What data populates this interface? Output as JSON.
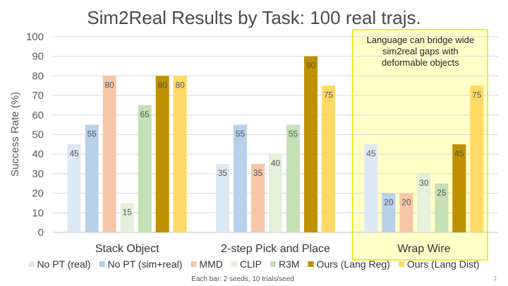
{
  "chart_data": {
    "type": "bar",
    "title": "Sim2Real Results by Task: 100 real trajs.",
    "ylabel": "Success Rate (%)",
    "xlabel": "",
    "ylim": [
      0,
      100
    ],
    "yticks": [
      0,
      10,
      20,
      30,
      40,
      50,
      60,
      70,
      80,
      90,
      100
    ],
    "grid": true,
    "legend_position": "bottom",
    "categories": [
      "Stack Object",
      "2-step Pick and Place",
      "Wrap Wire"
    ],
    "series": [
      {
        "name": "No PT (real)",
        "color": "#dde8f5",
        "values": [
          45,
          35,
          45
        ]
      },
      {
        "name": "No PT (sim+real)",
        "color": "#b8d0ea",
        "values": [
          55,
          55,
          20
        ]
      },
      {
        "name": "MMD",
        "color": "#f6c6a8",
        "values": [
          80,
          35,
          20
        ]
      },
      {
        "name": "CLIP",
        "color": "#e3f0da",
        "values": [
          15,
          40,
          30
        ]
      },
      {
        "name": "R3M",
        "color": "#c4e0b4",
        "values": [
          65,
          55,
          25
        ]
      },
      {
        "name": "Ours (Lang Reg)",
        "color": "#bf9000",
        "values": [
          80,
          90,
          45
        ]
      },
      {
        "name": "Ours (Lang Dist)",
        "color": "#ffd966",
        "values": [
          80,
          75,
          75
        ]
      }
    ],
    "annotation": {
      "text_lines": [
        "Language can bridge wide",
        "sim2real gaps with",
        "deformable objects"
      ],
      "highlight_category": "Wrap Wire",
      "fill_color": "#ffff99",
      "border_color": "#e6e600"
    },
    "footnote": "Each bar: 2 seeds, 10 trials/seed",
    "page_number": "1"
  }
}
